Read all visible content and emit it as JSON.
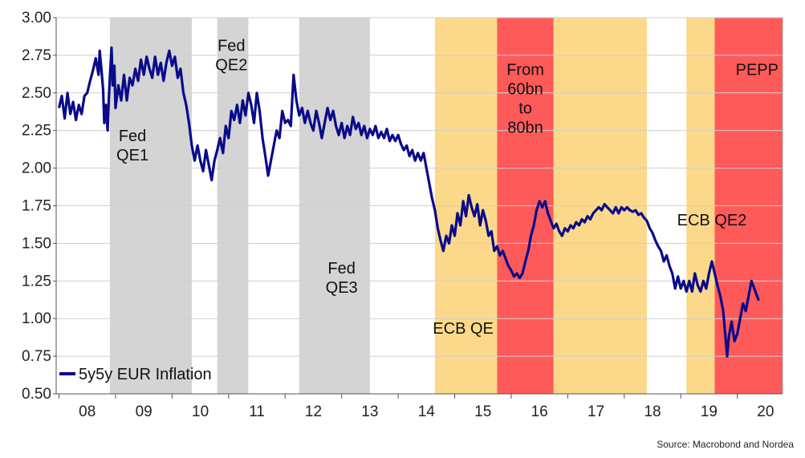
{
  "chart_data": {
    "type": "line",
    "title": "",
    "xlabel": "",
    "ylabel": "",
    "ylim": [
      0.5,
      3.0
    ],
    "xlim": [
      2007.95,
      2020.8
    ],
    "y_ticks": [
      "0.50",
      "0.75",
      "1.00",
      "1.25",
      "1.50",
      "1.75",
      "2.00",
      "2.25",
      "2.50",
      "2.75",
      "3.00"
    ],
    "x_tick_labels": [
      "08",
      "09",
      "10",
      "11",
      "12",
      "13",
      "14",
      "15",
      "16",
      "17",
      "18",
      "19",
      "20"
    ],
    "grid": "horizontal",
    "legend": {
      "placement": "bottom-left",
      "entries": [
        "5y5y EUR Inflation"
      ]
    },
    "shaded_periods": [
      {
        "start": 2008.9,
        "end": 2010.35,
        "color": "#d4d4d4",
        "label": "Fed\nQE1",
        "label_x": 2009.3,
        "label_y": 2.18
      },
      {
        "start": 2010.8,
        "end": 2011.35,
        "color": "#d4d4d4",
        "label": "Fed\nQE2",
        "label_x": 2011.05,
        "label_y": 2.78
      },
      {
        "start": 2012.25,
        "end": 2013.5,
        "color": "#d4d4d4",
        "label": "Fed\nQE3",
        "label_x": 2013.0,
        "label_y": 1.3
      },
      {
        "start": 2014.65,
        "end": 2015.75,
        "color": "#fcd98a",
        "label": "ECB QE",
        "label_x": 2015.15,
        "label_y": 0.9
      },
      {
        "start": 2015.75,
        "end": 2016.75,
        "color": "#ff5a5a",
        "label": "From\n60bn\nto\n80bn",
        "label_x": 2016.25,
        "label_y": 2.62
      },
      {
        "start": 2016.75,
        "end": 2018.4,
        "color": "#fcd98a",
        "label": "",
        "label_x": 0,
        "label_y": 0
      },
      {
        "start": 2019.1,
        "end": 2019.6,
        "color": "#fcd98a",
        "label": "ECB QE2",
        "label_x": 2019.55,
        "label_y": 1.62
      },
      {
        "start": 2019.6,
        "end": 2020.8,
        "color": "#ff5a5a",
        "label": "PEPP",
        "label_x": 2020.35,
        "label_y": 2.62
      }
    ],
    "series": [
      {
        "name": "5y5y EUR Inflation",
        "color": "#0a0a8a",
        "points": [
          [
            2008.0,
            2.4
          ],
          [
            2008.05,
            2.48
          ],
          [
            2008.1,
            2.33
          ],
          [
            2008.15,
            2.5
          ],
          [
            2008.2,
            2.36
          ],
          [
            2008.25,
            2.44
          ],
          [
            2008.3,
            2.32
          ],
          [
            2008.35,
            2.42
          ],
          [
            2008.4,
            2.36
          ],
          [
            2008.45,
            2.48
          ],
          [
            2008.5,
            2.5
          ],
          [
            2008.55,
            2.58
          ],
          [
            2008.6,
            2.65
          ],
          [
            2008.65,
            2.73
          ],
          [
            2008.7,
            2.62
          ],
          [
            2008.72,
            2.78
          ],
          [
            2008.75,
            2.66
          ],
          [
            2008.78,
            2.52
          ],
          [
            2008.8,
            2.3
          ],
          [
            2008.83,
            2.42
          ],
          [
            2008.86,
            2.25
          ],
          [
            2008.88,
            2.45
          ],
          [
            2008.9,
            2.6
          ],
          [
            2008.93,
            2.8
          ],
          [
            2008.95,
            2.55
          ],
          [
            2008.98,
            2.68
          ],
          [
            2009.0,
            2.4
          ],
          [
            2009.05,
            2.55
          ],
          [
            2009.1,
            2.45
          ],
          [
            2009.15,
            2.62
          ],
          [
            2009.2,
            2.45
          ],
          [
            2009.25,
            2.6
          ],
          [
            2009.3,
            2.55
          ],
          [
            2009.35,
            2.66
          ],
          [
            2009.4,
            2.58
          ],
          [
            2009.45,
            2.72
          ],
          [
            2009.5,
            2.62
          ],
          [
            2009.55,
            2.74
          ],
          [
            2009.6,
            2.66
          ],
          [
            2009.65,
            2.6
          ],
          [
            2009.7,
            2.74
          ],
          [
            2009.75,
            2.62
          ],
          [
            2009.8,
            2.7
          ],
          [
            2009.85,
            2.58
          ],
          [
            2009.9,
            2.7
          ],
          [
            2009.95,
            2.78
          ],
          [
            2010.0,
            2.68
          ],
          [
            2010.05,
            2.74
          ],
          [
            2010.1,
            2.6
          ],
          [
            2010.15,
            2.66
          ],
          [
            2010.2,
            2.5
          ],
          [
            2010.25,
            2.42
          ],
          [
            2010.3,
            2.3
          ],
          [
            2010.35,
            2.15
          ],
          [
            2010.4,
            2.05
          ],
          [
            2010.45,
            2.15
          ],
          [
            2010.5,
            2.05
          ],
          [
            2010.55,
            1.98
          ],
          [
            2010.6,
            2.12
          ],
          [
            2010.65,
            2.02
          ],
          [
            2010.7,
            1.92
          ],
          [
            2010.75,
            2.05
          ],
          [
            2010.8,
            2.12
          ],
          [
            2010.85,
            2.2
          ],
          [
            2010.9,
            2.1
          ],
          [
            2010.95,
            2.28
          ],
          [
            2011.0,
            2.2
          ],
          [
            2011.05,
            2.38
          ],
          [
            2011.1,
            2.32
          ],
          [
            2011.15,
            2.42
          ],
          [
            2011.2,
            2.3
          ],
          [
            2011.25,
            2.45
          ],
          [
            2011.3,
            2.35
          ],
          [
            2011.35,
            2.5
          ],
          [
            2011.4,
            2.42
          ],
          [
            2011.45,
            2.3
          ],
          [
            2011.5,
            2.5
          ],
          [
            2011.55,
            2.38
          ],
          [
            2011.6,
            2.2
          ],
          [
            2011.65,
            2.08
          ],
          [
            2011.7,
            1.95
          ],
          [
            2011.75,
            2.05
          ],
          [
            2011.8,
            2.15
          ],
          [
            2011.85,
            2.25
          ],
          [
            2011.9,
            2.2
          ],
          [
            2011.95,
            2.38
          ],
          [
            2012.0,
            2.3
          ],
          [
            2012.05,
            2.32
          ],
          [
            2012.1,
            2.28
          ],
          [
            2012.15,
            2.62
          ],
          [
            2012.2,
            2.45
          ],
          [
            2012.25,
            2.35
          ],
          [
            2012.3,
            2.4
          ],
          [
            2012.35,
            2.3
          ],
          [
            2012.4,
            2.38
          ],
          [
            2012.45,
            2.3
          ],
          [
            2012.5,
            2.25
          ],
          [
            2012.55,
            2.38
          ],
          [
            2012.6,
            2.3
          ],
          [
            2012.65,
            2.2
          ],
          [
            2012.7,
            2.3
          ],
          [
            2012.75,
            2.4
          ],
          [
            2012.8,
            2.32
          ],
          [
            2012.85,
            2.38
          ],
          [
            2012.9,
            2.28
          ],
          [
            2012.95,
            2.22
          ],
          [
            2013.0,
            2.3
          ],
          [
            2013.05,
            2.2
          ],
          [
            2013.1,
            2.28
          ],
          [
            2013.15,
            2.22
          ],
          [
            2013.2,
            2.34
          ],
          [
            2013.25,
            2.26
          ],
          [
            2013.3,
            2.3
          ],
          [
            2013.35,
            2.22
          ],
          [
            2013.4,
            2.28
          ],
          [
            2013.45,
            2.2
          ],
          [
            2013.5,
            2.26
          ],
          [
            2013.55,
            2.22
          ],
          [
            2013.6,
            2.28
          ],
          [
            2013.65,
            2.2
          ],
          [
            2013.7,
            2.24
          ],
          [
            2013.75,
            2.2
          ],
          [
            2013.8,
            2.26
          ],
          [
            2013.85,
            2.18
          ],
          [
            2013.9,
            2.22
          ],
          [
            2013.95,
            2.18
          ],
          [
            2014.0,
            2.22
          ],
          [
            2014.05,
            2.16
          ],
          [
            2014.1,
            2.12
          ],
          [
            2014.15,
            2.15
          ],
          [
            2014.2,
            2.08
          ],
          [
            2014.25,
            2.12
          ],
          [
            2014.3,
            2.05
          ],
          [
            2014.35,
            2.1
          ],
          [
            2014.4,
            2.05
          ],
          [
            2014.45,
            2.1
          ],
          [
            2014.5,
            2.0
          ],
          [
            2014.55,
            1.9
          ],
          [
            2014.6,
            1.8
          ],
          [
            2014.65,
            1.72
          ],
          [
            2014.7,
            1.6
          ],
          [
            2014.75,
            1.52
          ],
          [
            2014.8,
            1.45
          ],
          [
            2014.85,
            1.55
          ],
          [
            2014.9,
            1.5
          ],
          [
            2014.95,
            1.62
          ],
          [
            2015.0,
            1.55
          ],
          [
            2015.05,
            1.7
          ],
          [
            2015.1,
            1.62
          ],
          [
            2015.15,
            1.78
          ],
          [
            2015.2,
            1.68
          ],
          [
            2015.25,
            1.82
          ],
          [
            2015.3,
            1.74
          ],
          [
            2015.35,
            1.68
          ],
          [
            2015.4,
            1.76
          ],
          [
            2015.45,
            1.62
          ],
          [
            2015.5,
            1.72
          ],
          [
            2015.55,
            1.65
          ],
          [
            2015.6,
            1.55
          ],
          [
            2015.65,
            1.58
          ],
          [
            2015.7,
            1.45
          ],
          [
            2015.75,
            1.48
          ],
          [
            2015.8,
            1.42
          ],
          [
            2015.85,
            1.45
          ],
          [
            2015.9,
            1.4
          ],
          [
            2015.95,
            1.35
          ],
          [
            2016.0,
            1.32
          ],
          [
            2016.05,
            1.28
          ],
          [
            2016.1,
            1.3
          ],
          [
            2016.15,
            1.27
          ],
          [
            2016.2,
            1.3
          ],
          [
            2016.25,
            1.38
          ],
          [
            2016.3,
            1.45
          ],
          [
            2016.35,
            1.55
          ],
          [
            2016.4,
            1.62
          ],
          [
            2016.45,
            1.72
          ],
          [
            2016.5,
            1.78
          ],
          [
            2016.55,
            1.74
          ],
          [
            2016.6,
            1.78
          ],
          [
            2016.65,
            1.7
          ],
          [
            2016.7,
            1.65
          ],
          [
            2016.75,
            1.6
          ],
          [
            2016.8,
            1.63
          ],
          [
            2016.85,
            1.58
          ],
          [
            2016.9,
            1.55
          ],
          [
            2016.95,
            1.6
          ],
          [
            2017.0,
            1.58
          ],
          [
            2017.05,
            1.62
          ],
          [
            2017.1,
            1.6
          ],
          [
            2017.15,
            1.64
          ],
          [
            2017.2,
            1.62
          ],
          [
            2017.25,
            1.66
          ],
          [
            2017.3,
            1.64
          ],
          [
            2017.35,
            1.68
          ],
          [
            2017.4,
            1.66
          ],
          [
            2017.45,
            1.7
          ],
          [
            2017.5,
            1.72
          ],
          [
            2017.55,
            1.74
          ],
          [
            2017.6,
            1.72
          ],
          [
            2017.65,
            1.76
          ],
          [
            2017.7,
            1.74
          ],
          [
            2017.75,
            1.72
          ],
          [
            2017.8,
            1.7
          ],
          [
            2017.85,
            1.74
          ],
          [
            2017.9,
            1.7
          ],
          [
            2017.95,
            1.74
          ],
          [
            2018.0,
            1.72
          ],
          [
            2018.05,
            1.74
          ],
          [
            2018.1,
            1.72
          ],
          [
            2018.15,
            1.71
          ],
          [
            2018.2,
            1.72
          ],
          [
            2018.25,
            1.69
          ],
          [
            2018.3,
            1.7
          ],
          [
            2018.35,
            1.67
          ],
          [
            2018.4,
            1.65
          ],
          [
            2018.45,
            1.6
          ],
          [
            2018.5,
            1.57
          ],
          [
            2018.55,
            1.52
          ],
          [
            2018.6,
            1.48
          ],
          [
            2018.65,
            1.45
          ],
          [
            2018.7,
            1.38
          ],
          [
            2018.75,
            1.42
          ],
          [
            2018.8,
            1.35
          ],
          [
            2018.85,
            1.3
          ],
          [
            2018.9,
            1.2
          ],
          [
            2018.95,
            1.28
          ],
          [
            2019.0,
            1.2
          ],
          [
            2019.05,
            1.25
          ],
          [
            2019.1,
            1.18
          ],
          [
            2019.15,
            1.25
          ],
          [
            2019.2,
            1.18
          ],
          [
            2019.25,
            1.3
          ],
          [
            2019.3,
            1.22
          ],
          [
            2019.35,
            1.18
          ],
          [
            2019.4,
            1.25
          ],
          [
            2019.45,
            1.2
          ],
          [
            2019.5,
            1.3
          ],
          [
            2019.55,
            1.38
          ],
          [
            2019.6,
            1.3
          ],
          [
            2019.65,
            1.22
          ],
          [
            2019.7,
            1.15
          ],
          [
            2019.75,
            1.05
          ],
          [
            2019.78,
            0.92
          ],
          [
            2019.82,
            0.75
          ],
          [
            2019.85,
            0.88
          ],
          [
            2019.9,
            0.98
          ],
          [
            2019.95,
            0.85
          ],
          [
            2020.0,
            0.9
          ],
          [
            2020.05,
            1.0
          ],
          [
            2020.1,
            1.1
          ],
          [
            2020.15,
            1.05
          ],
          [
            2020.2,
            1.15
          ],
          [
            2020.25,
            1.25
          ],
          [
            2020.3,
            1.2
          ],
          [
            2020.35,
            1.15
          ],
          [
            2020.38,
            1.12
          ]
        ]
      }
    ]
  },
  "source": "Source: Macrobond and Nordea"
}
